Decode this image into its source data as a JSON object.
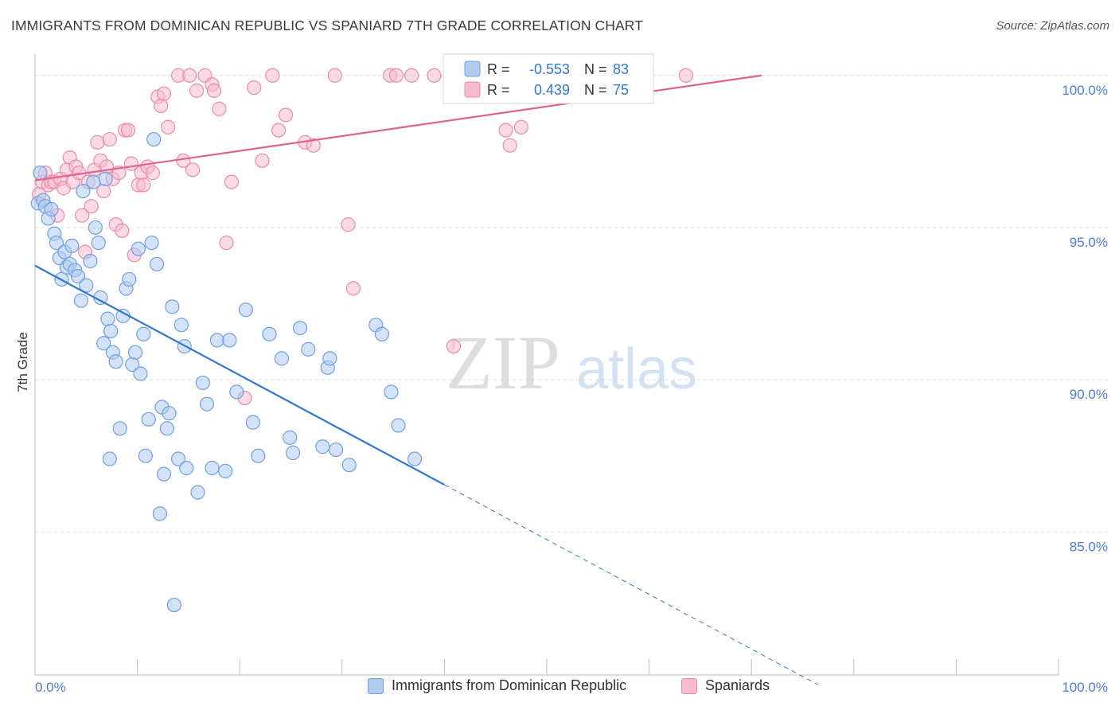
{
  "title": "IMMIGRANTS FROM DOMINICAN REPUBLIC VS SPANIARD 7TH GRADE CORRELATION CHART",
  "source": "Source: ZipAtlas.com",
  "watermark": {
    "zip": "ZIP",
    "atlas": "atlas"
  },
  "colors": {
    "blue_fill": "#aecbf0",
    "blue_stroke": "#6fa0dc",
    "blue_line": "#2f78d2",
    "pink_fill": "#f6bccd",
    "pink_stroke": "#e98bab",
    "pink_line": "#e0628c",
    "axis_text": "#4a7fcf",
    "grid": "#dddddd"
  },
  "legend_stats": [
    {
      "series": "blue",
      "r_label": "R =",
      "r_value": "-0.553",
      "n_label": "N =",
      "n_value": "83"
    },
    {
      "series": "pink",
      "r_label": "R =",
      "r_value": "0.439",
      "n_label": "N =",
      "n_value": "75"
    }
  ],
  "chart_data": {
    "type": "scatter",
    "title": "IMMIGRANTS FROM DOMINICAN REPUBLIC VS SPANIARD 7TH GRADE CORRELATION CHART",
    "xlabel": "",
    "ylabel": "7th Grade",
    "xlim": [
      0,
      100
    ],
    "ylim": [
      80.3,
      100.7
    ],
    "x_tick_labels": [
      "0.0%",
      "100.0%"
    ],
    "y_ticks": [
      85.0,
      90.0,
      95.0,
      100.0
    ],
    "y_tick_labels": [
      "85.0%",
      "90.0%",
      "95.0%",
      "100.0%"
    ],
    "grid": true,
    "legend_position": "top-center",
    "series": [
      {
        "name": "Immigrants from Dominican Republic",
        "color": "blue",
        "trend": {
          "x0": 0,
          "y0": 93.75,
          "x1": 40,
          "y1": 86.55,
          "dash_to_x": 76.5
        },
        "points": [
          [
            0.3,
            95.8
          ],
          [
            0.5,
            96.8
          ],
          [
            0.8,
            95.9
          ],
          [
            1.0,
            95.7
          ],
          [
            1.3,
            95.3
          ],
          [
            1.6,
            95.6
          ],
          [
            1.9,
            94.8
          ],
          [
            2.1,
            94.5
          ],
          [
            2.4,
            94.0
          ],
          [
            2.6,
            93.3
          ],
          [
            2.9,
            94.2
          ],
          [
            3.1,
            93.7
          ],
          [
            3.4,
            93.8
          ],
          [
            3.6,
            94.4
          ],
          [
            3.9,
            93.6
          ],
          [
            4.2,
            93.4
          ],
          [
            4.5,
            92.6
          ],
          [
            4.7,
            96.2
          ],
          [
            5.0,
            93.1
          ],
          [
            5.4,
            93.9
          ],
          [
            5.7,
            96.5
          ],
          [
            5.9,
            95.0
          ],
          [
            6.2,
            94.5
          ],
          [
            6.4,
            92.7
          ],
          [
            6.7,
            91.2
          ],
          [
            6.9,
            96.6
          ],
          [
            7.1,
            92.0
          ],
          [
            7.4,
            91.6
          ],
          [
            7.6,
            90.9
          ],
          [
            7.9,
            90.6
          ],
          [
            8.3,
            88.4
          ],
          [
            8.6,
            92.1
          ],
          [
            8.9,
            93.0
          ],
          [
            9.2,
            93.3
          ],
          [
            9.5,
            90.5
          ],
          [
            9.8,
            90.9
          ],
          [
            10.1,
            94.3
          ],
          [
            10.3,
            90.2
          ],
          [
            10.6,
            91.5
          ],
          [
            10.8,
            87.5
          ],
          [
            11.1,
            88.7
          ],
          [
            11.4,
            94.5
          ],
          [
            11.6,
            97.9
          ],
          [
            11.9,
            93.8
          ],
          [
            12.2,
            85.6
          ],
          [
            12.4,
            89.1
          ],
          [
            12.6,
            86.9
          ],
          [
            12.9,
            88.4
          ],
          [
            13.1,
            88.9
          ],
          [
            13.4,
            92.4
          ],
          [
            13.6,
            82.6
          ],
          [
            14.0,
            87.4
          ],
          [
            14.3,
            91.8
          ],
          [
            14.6,
            91.1
          ],
          [
            14.8,
            87.1
          ],
          [
            15.9,
            86.3
          ],
          [
            16.4,
            89.9
          ],
          [
            16.8,
            89.2
          ],
          [
            17.3,
            87.1
          ],
          [
            17.8,
            91.3
          ],
          [
            18.6,
            87.0
          ],
          [
            19.0,
            91.3
          ],
          [
            19.7,
            89.6
          ],
          [
            20.6,
            92.3
          ],
          [
            21.3,
            88.6
          ],
          [
            21.8,
            87.5
          ],
          [
            22.9,
            91.5
          ],
          [
            24.1,
            90.7
          ],
          [
            24.9,
            88.1
          ],
          [
            25.2,
            87.6
          ],
          [
            25.9,
            91.7
          ],
          [
            26.7,
            91.0
          ],
          [
            28.1,
            87.8
          ],
          [
            28.6,
            90.4
          ],
          [
            28.8,
            90.7
          ],
          [
            29.4,
            87.7
          ],
          [
            30.7,
            87.2
          ],
          [
            33.3,
            91.8
          ],
          [
            33.9,
            91.5
          ],
          [
            34.8,
            89.6
          ],
          [
            35.5,
            88.5
          ],
          [
            37.1,
            87.4
          ],
          [
            7.3,
            87.4
          ]
        ]
      },
      {
        "name": "Spaniards",
        "color": "pink",
        "trend": {
          "x0": 0,
          "y0": 96.55,
          "x1": 71,
          "y1": 100.0,
          "extend_to_x": 100
        },
        "points": [
          [
            0.4,
            96.1
          ],
          [
            0.7,
            96.5
          ],
          [
            1.0,
            96.8
          ],
          [
            1.3,
            96.4
          ],
          [
            1.6,
            96.5
          ],
          [
            1.9,
            96.5
          ],
          [
            2.2,
            95.4
          ],
          [
            2.5,
            96.6
          ],
          [
            2.8,
            96.3
          ],
          [
            3.1,
            96.9
          ],
          [
            3.4,
            97.3
          ],
          [
            3.7,
            96.5
          ],
          [
            4.0,
            97.0
          ],
          [
            4.3,
            96.8
          ],
          [
            4.6,
            95.4
          ],
          [
            4.9,
            94.2
          ],
          [
            5.2,
            96.5
          ],
          [
            5.5,
            95.7
          ],
          [
            5.8,
            96.9
          ],
          [
            6.1,
            97.8
          ],
          [
            6.4,
            97.2
          ],
          [
            6.7,
            96.2
          ],
          [
            7.0,
            97.0
          ],
          [
            7.3,
            97.9
          ],
          [
            7.6,
            96.6
          ],
          [
            7.9,
            95.1
          ],
          [
            8.2,
            96.8
          ],
          [
            8.5,
            94.9
          ],
          [
            8.8,
            98.2
          ],
          [
            9.1,
            98.2
          ],
          [
            9.4,
            97.1
          ],
          [
            9.7,
            94.1
          ],
          [
            10.1,
            96.4
          ],
          [
            10.4,
            96.8
          ],
          [
            10.6,
            96.4
          ],
          [
            11.0,
            97.0
          ],
          [
            11.5,
            96.8
          ],
          [
            12.0,
            99.3
          ],
          [
            12.3,
            99.0
          ],
          [
            12.6,
            99.4
          ],
          [
            13.0,
            98.3
          ],
          [
            14.0,
            100.0
          ],
          [
            14.5,
            97.2
          ],
          [
            15.1,
            100.0
          ],
          [
            15.4,
            96.9
          ],
          [
            15.8,
            99.5
          ],
          [
            16.6,
            100.0
          ],
          [
            17.3,
            99.7
          ],
          [
            17.5,
            99.5
          ],
          [
            18.0,
            98.9
          ],
          [
            18.7,
            94.5
          ],
          [
            19.2,
            96.5
          ],
          [
            20.5,
            89.4
          ],
          [
            21.4,
            99.6
          ],
          [
            22.2,
            97.2
          ],
          [
            23.2,
            100.0
          ],
          [
            23.8,
            98.2
          ],
          [
            24.5,
            98.7
          ],
          [
            26.4,
            97.8
          ],
          [
            27.2,
            97.7
          ],
          [
            29.3,
            100.0
          ],
          [
            30.6,
            95.1
          ],
          [
            31.1,
            93.0
          ],
          [
            34.7,
            100.0
          ],
          [
            35.3,
            100.0
          ],
          [
            36.8,
            100.0
          ],
          [
            39.0,
            100.0
          ],
          [
            44.7,
            100.0
          ],
          [
            46.0,
            98.2
          ],
          [
            47.5,
            98.3
          ],
          [
            40.9,
            91.1
          ],
          [
            46.4,
            97.7
          ],
          [
            54.9,
            100.0
          ],
          [
            57.8,
            100.0
          ],
          [
            63.6,
            100.0
          ]
        ]
      }
    ]
  }
}
